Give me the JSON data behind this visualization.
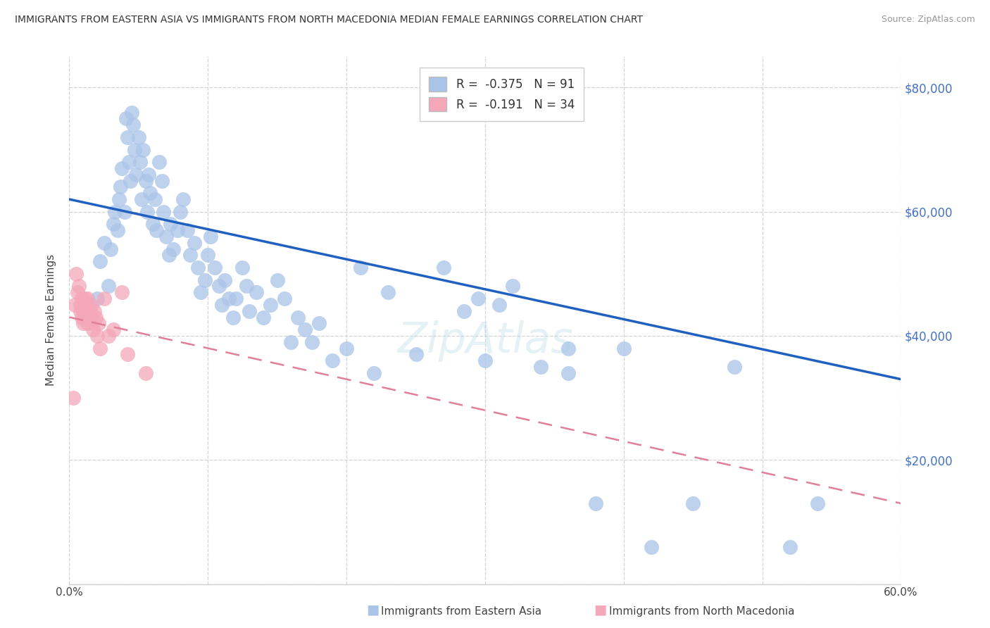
{
  "title": "IMMIGRANTS FROM EASTERN ASIA VS IMMIGRANTS FROM NORTH MACEDONIA MEDIAN FEMALE EARNINGS CORRELATION CHART",
  "source": "Source: ZipAtlas.com",
  "ylabel": "Median Female Earnings",
  "xmin": 0.0,
  "xmax": 0.6,
  "ymin": 0,
  "ymax": 85000,
  "blue_R": "-0.375",
  "blue_N": "91",
  "pink_R": "-0.191",
  "pink_N": "34",
  "blue_color": "#aac4e8",
  "pink_color": "#f4a7b9",
  "blue_line_color": "#2060c0",
  "pink_line_color": "#e08098",
  "right_tick_color": "#4472c4",
  "blue_line_x": [
    0.0,
    0.6
  ],
  "blue_line_y": [
    62000,
    33000
  ],
  "pink_line_x": [
    0.0,
    0.6
  ],
  "pink_line_y": [
    43000,
    13000
  ],
  "blue_x": [
    0.02,
    0.022,
    0.025,
    0.028,
    0.03,
    0.032,
    0.033,
    0.035,
    0.036,
    0.037,
    0.038,
    0.04,
    0.041,
    0.042,
    0.043,
    0.044,
    0.045,
    0.046,
    0.047,
    0.048,
    0.05,
    0.051,
    0.052,
    0.053,
    0.055,
    0.056,
    0.057,
    0.058,
    0.06,
    0.062,
    0.063,
    0.065,
    0.067,
    0.068,
    0.07,
    0.072,
    0.073,
    0.075,
    0.078,
    0.08,
    0.082,
    0.085,
    0.087,
    0.09,
    0.093,
    0.095,
    0.098,
    0.1,
    0.102,
    0.105,
    0.108,
    0.11,
    0.112,
    0.115,
    0.118,
    0.12,
    0.125,
    0.128,
    0.13,
    0.135,
    0.14,
    0.145,
    0.15,
    0.155,
    0.16,
    0.165,
    0.17,
    0.175,
    0.18,
    0.19,
    0.2,
    0.21,
    0.22,
    0.23,
    0.25,
    0.27,
    0.3,
    0.32,
    0.34,
    0.36,
    0.38,
    0.42,
    0.45,
    0.48,
    0.52,
    0.54,
    0.285,
    0.31,
    0.295,
    0.36,
    0.4
  ],
  "blue_y": [
    46000,
    52000,
    55000,
    48000,
    54000,
    58000,
    60000,
    57000,
    62000,
    64000,
    67000,
    60000,
    75000,
    72000,
    68000,
    65000,
    76000,
    74000,
    70000,
    66000,
    72000,
    68000,
    62000,
    70000,
    65000,
    60000,
    66000,
    63000,
    58000,
    62000,
    57000,
    68000,
    65000,
    60000,
    56000,
    53000,
    58000,
    54000,
    57000,
    60000,
    62000,
    57000,
    53000,
    55000,
    51000,
    47000,
    49000,
    53000,
    56000,
    51000,
    48000,
    45000,
    49000,
    46000,
    43000,
    46000,
    51000,
    48000,
    44000,
    47000,
    43000,
    45000,
    49000,
    46000,
    39000,
    43000,
    41000,
    39000,
    42000,
    36000,
    38000,
    51000,
    34000,
    47000,
    37000,
    51000,
    36000,
    48000,
    35000,
    38000,
    13000,
    6000,
    13000,
    35000,
    6000,
    13000,
    44000,
    45000,
    46000,
    34000,
    38000
  ],
  "pink_x": [
    0.003,
    0.004,
    0.005,
    0.006,
    0.007,
    0.008,
    0.008,
    0.009,
    0.009,
    0.01,
    0.01,
    0.011,
    0.011,
    0.012,
    0.012,
    0.013,
    0.013,
    0.014,
    0.015,
    0.015,
    0.016,
    0.016,
    0.017,
    0.018,
    0.019,
    0.02,
    0.021,
    0.022,
    0.025,
    0.028,
    0.032,
    0.038,
    0.042,
    0.055
  ],
  "pink_y": [
    30000,
    45000,
    50000,
    47000,
    48000,
    45000,
    44000,
    46000,
    43000,
    44000,
    42000,
    46000,
    43000,
    44000,
    45000,
    42000,
    46000,
    44000,
    43000,
    44000,
    45000,
    42000,
    41000,
    44000,
    43000,
    40000,
    42000,
    38000,
    46000,
    40000,
    41000,
    47000,
    37000,
    34000
  ]
}
